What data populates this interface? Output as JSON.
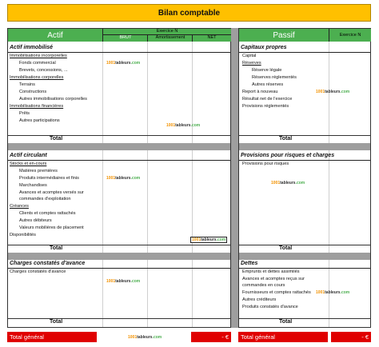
{
  "title": "Bilan comptable",
  "actif": {
    "label": "Actif",
    "exercice": "Exercice N",
    "columns": [
      "BRUT",
      "Amortissement",
      "NET"
    ],
    "s1": {
      "title": "Actif immobilisé",
      "items": [
        "Immobilisations incorporelles",
        "Fonds commercial",
        "Brevets, concessions, ...",
        "Immobilisations corporelles",
        "Terrains",
        "Constructions",
        "Autres immobilisations corporelles",
        "Immobilisations financières",
        "Prêts",
        "Autres participations"
      ],
      "total": "Total"
    },
    "s2": {
      "title": "Actif circulant",
      "items": [
        "Stocks et en-cours",
        "Matières premières",
        "Produits intermédiaires et finis",
        "Marchandises",
        "Avances et acomptes versés sur",
        "commandes d'exploitation",
        "Créances",
        "Clients et comptes rattachés",
        "Autres débiteurs",
        "Valeurs mobilières de placement",
        "Disponibilités"
      ],
      "total": "Total"
    },
    "s3": {
      "title": "Charges constatés d'avance",
      "items": [
        "Charges constatés d'avance"
      ],
      "total": "Total"
    },
    "total_general": "Total général",
    "total_value": "- €"
  },
  "passif": {
    "label": "Passif",
    "exercice": "Exercice N",
    "s1": {
      "title": "Capitaux propres",
      "items": [
        "Capital",
        "Réserves",
        "Réserve légale",
        "Réserves réglementés",
        "Autres réserves",
        "Report à nouveau",
        "Résultat net de l'exercice",
        "Provisions réglementés"
      ],
      "total": "Total"
    },
    "s2": {
      "title": "Provisions pour risques et charges",
      "items": [
        "Provisions pour risques"
      ],
      "total": "Total"
    },
    "s3": {
      "title": "Dettes",
      "items": [
        "Emprunts et dettes assimilés",
        "Avances et acomptes reçus sur",
        "commandes en cours",
        "Fournisseurs et comptes rattachés",
        "Autres créditeurs",
        "Produits constatés d'avance"
      ],
      "total": "Total"
    },
    "total_general": "Total général",
    "total_value": "- €"
  },
  "watermark": {
    "a": "1001",
    "b": "tableurs",
    ".com": ".com"
  }
}
